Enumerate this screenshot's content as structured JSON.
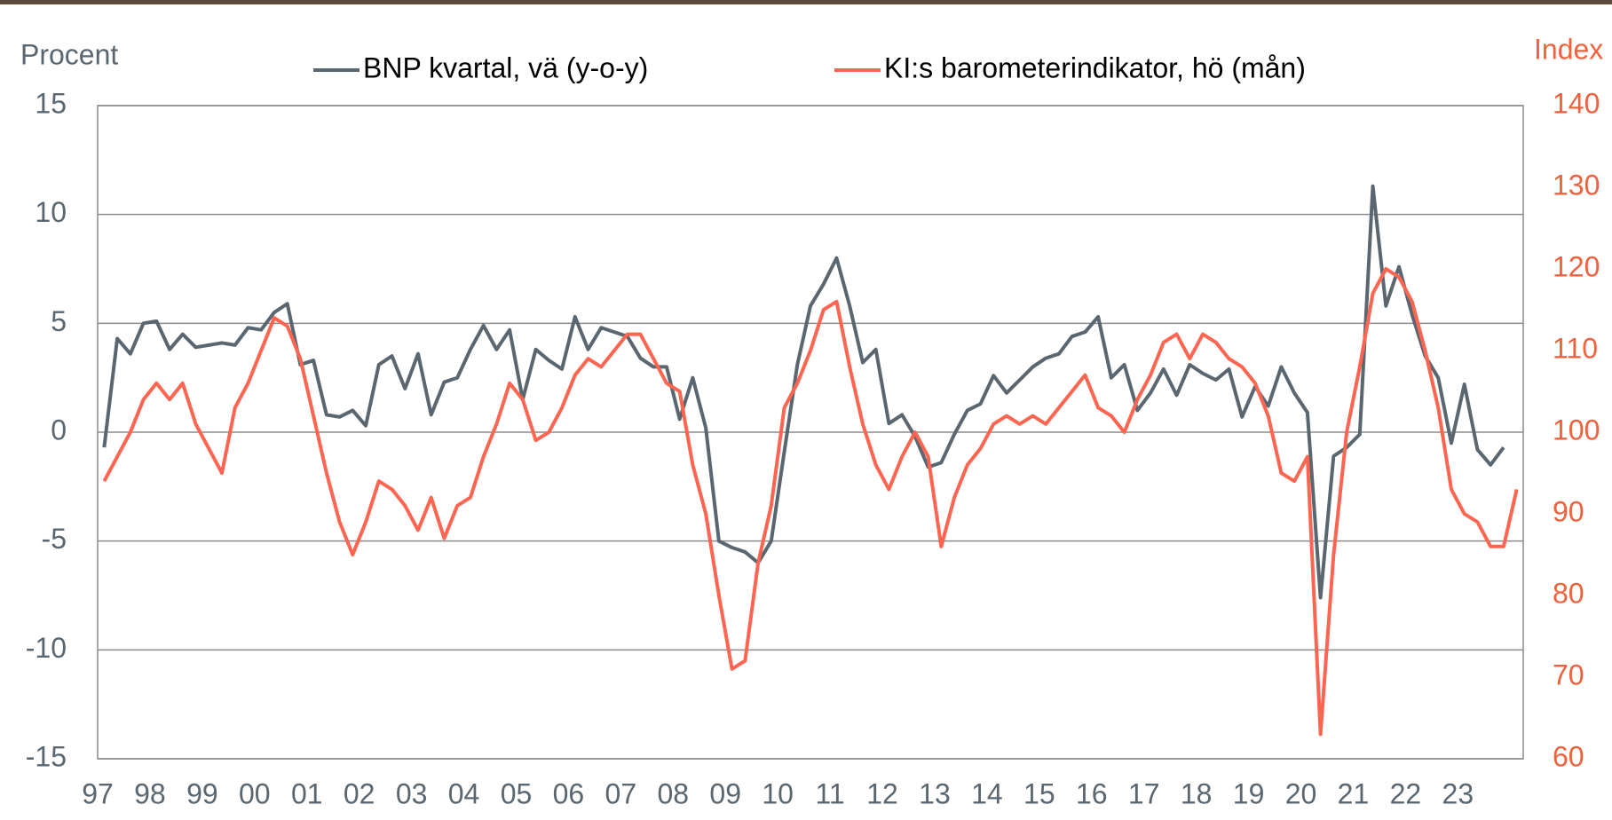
{
  "chart_data": {
    "type": "line",
    "y_label": "Procent",
    "y2_label": "Index",
    "categories": [
      "97",
      null,
      null,
      null,
      "98",
      null,
      null,
      null,
      "99",
      null,
      null,
      null,
      "00",
      null,
      null,
      null,
      "01",
      null,
      null,
      null,
      "02",
      null,
      null,
      null,
      "03",
      null,
      null,
      null,
      "04",
      null,
      null,
      null,
      "05",
      null,
      null,
      null,
      "06",
      null,
      null,
      null,
      "07",
      null,
      null,
      null,
      "08",
      null,
      null,
      null,
      "09",
      null,
      null,
      null,
      "10",
      null,
      null,
      null,
      "11",
      null,
      null,
      null,
      "12",
      null,
      null,
      null,
      "13",
      null,
      null,
      null,
      "14",
      null,
      null,
      null,
      "15",
      null,
      null,
      null,
      "16",
      null,
      null,
      null,
      "17",
      null,
      null,
      null,
      "18",
      null,
      null,
      null,
      "19",
      null,
      null,
      null,
      "20",
      null,
      null,
      null,
      "21",
      null,
      null,
      null,
      "22",
      null,
      null,
      null,
      "23",
      null,
      null,
      null,
      null
    ],
    "series": [
      {
        "name": "BNP kvartal, vä (y-o-y)",
        "color": "#5a6770",
        "axis": "y",
        "values": [
          -0.7,
          4.3,
          3.6,
          5.0,
          5.1,
          3.8,
          4.5,
          3.9,
          4.0,
          4.1,
          4.0,
          4.8,
          4.7,
          5.5,
          5.9,
          3.1,
          3.3,
          0.8,
          0.7,
          1.0,
          0.3,
          3.1,
          3.5,
          2.0,
          3.6,
          0.8,
          2.3,
          2.5,
          3.8,
          4.9,
          3.8,
          4.7,
          1.5,
          3.8,
          3.3,
          2.9,
          5.3,
          3.8,
          4.8,
          4.6,
          4.4,
          3.4,
          3.0,
          3.0,
          0.6,
          2.5,
          0.2,
          -5.0,
          -5.3,
          -5.5,
          -6.0,
          -5.0,
          -0.9,
          3.1,
          5.8,
          6.8,
          8.0,
          5.8,
          3.2,
          3.8,
          0.4,
          0.8,
          -0.2,
          -1.6,
          -1.4,
          -0.1,
          1.0,
          1.3,
          2.6,
          1.8,
          2.4,
          3.0,
          3.4,
          3.6,
          4.4,
          4.6,
          5.3,
          2.5,
          3.1,
          1.0,
          1.8,
          2.9,
          1.7,
          3.1,
          2.7,
          2.4,
          2.9,
          0.7,
          2.1,
          1.2,
          3.0,
          1.8,
          0.9,
          -7.6,
          -1.1,
          -0.7,
          -0.1,
          11.3,
          5.8,
          7.6,
          5.4,
          3.5,
          2.5,
          -0.5,
          2.2,
          -0.8,
          -1.5,
          -0.7,
          null
        ]
      },
      {
        "name": "KI:s barometerindikator, hö (mån)",
        "color": "#ff6550",
        "axis": "y2",
        "values": [
          94,
          97,
          100,
          104,
          106,
          104,
          106,
          101,
          98,
          95,
          103,
          106,
          110,
          114,
          113,
          109,
          102,
          95,
          89,
          85,
          89,
          94,
          93,
          91,
          88,
          92,
          87,
          91,
          92,
          97,
          101,
          106,
          104,
          99,
          100,
          103,
          107,
          109,
          108,
          110,
          112,
          112,
          109,
          106,
          105,
          96,
          90,
          80,
          71,
          72,
          84,
          91,
          103,
          106,
          110,
          115,
          116,
          108,
          101,
          96,
          93,
          97,
          100,
          97,
          86,
          92,
          96,
          98,
          101,
          102,
          101,
          102,
          101,
          103,
          105,
          107,
          103,
          102,
          100,
          104,
          107,
          111,
          112,
          109,
          112,
          111,
          109,
          108,
          106,
          102,
          95,
          94,
          97,
          63,
          85,
          100,
          108,
          117,
          120,
          119,
          116,
          110,
          103,
          93,
          90,
          89,
          86,
          86,
          93
        ]
      }
    ],
    "ylim": [
      -15,
      15
    ],
    "yticks": [
      -15,
      -10,
      -5,
      0,
      5,
      10,
      15
    ],
    "y2lim": [
      60,
      140
    ],
    "y2ticks": [
      60,
      70,
      80,
      90,
      100,
      110,
      120,
      130,
      140
    ],
    "grid": true
  }
}
